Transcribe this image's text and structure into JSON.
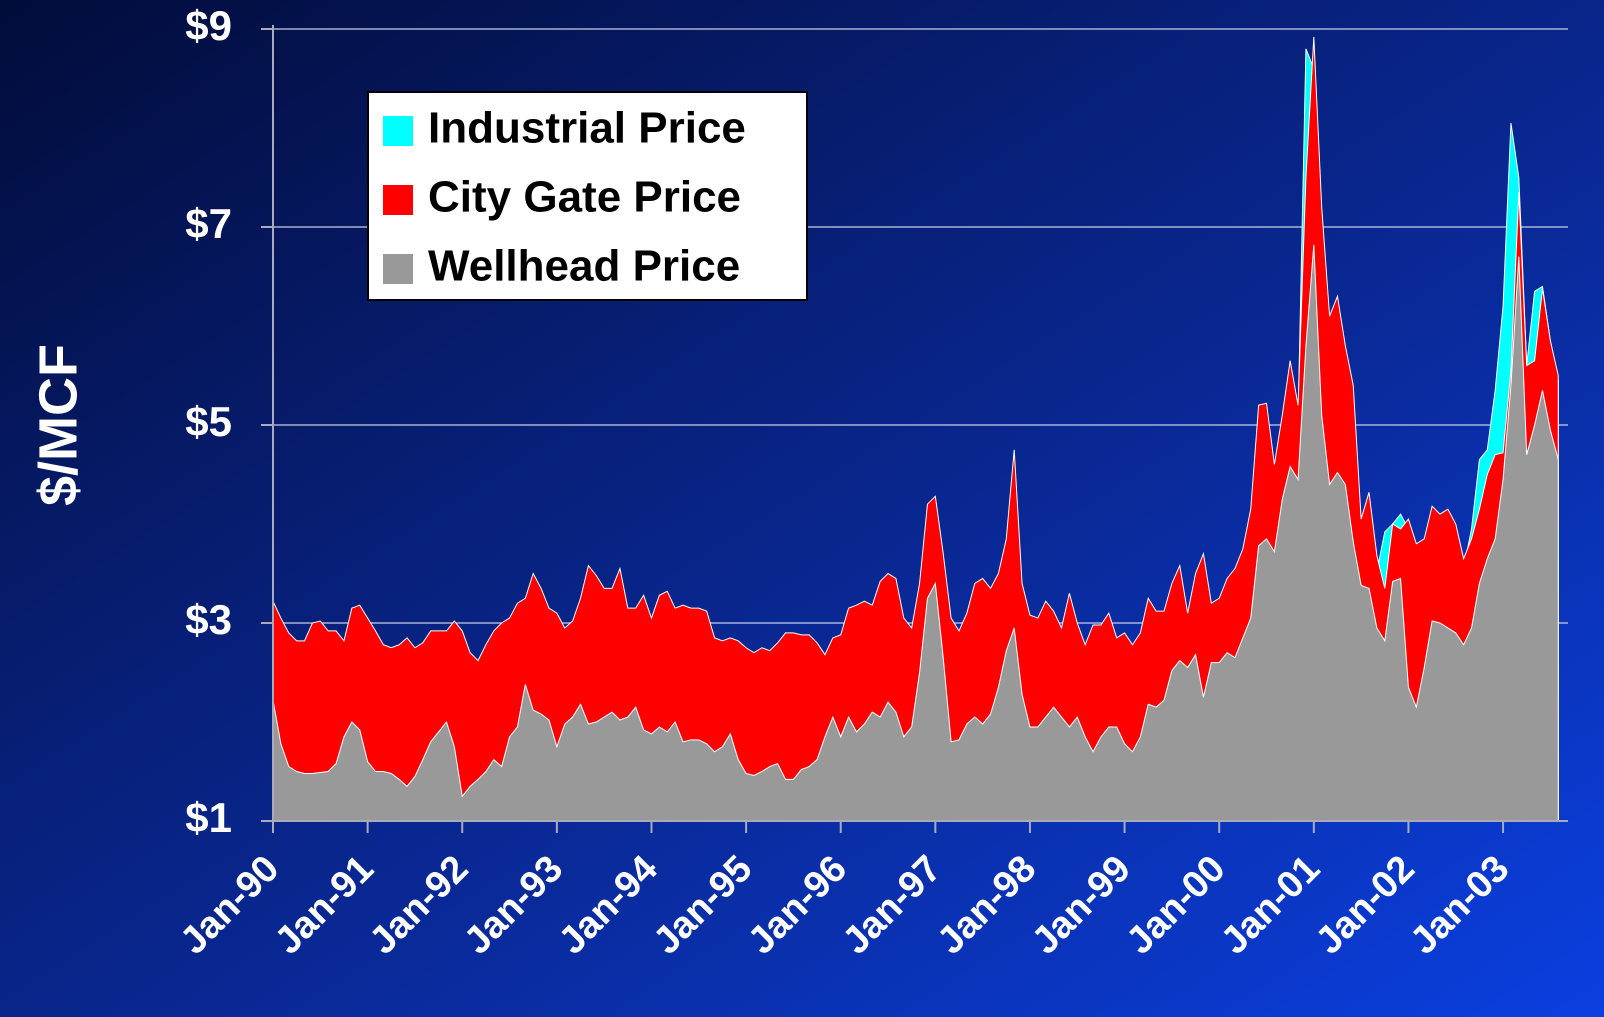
{
  "chart_data": {
    "type": "area",
    "ylabel": "$/MCF",
    "categories": [
      "Jan-90",
      null,
      null,
      null,
      null,
      null,
      null,
      null,
      null,
      null,
      null,
      null,
      "Jan-91",
      null,
      null,
      null,
      null,
      null,
      null,
      null,
      null,
      null,
      null,
      null,
      "Jan-92",
      null,
      null,
      null,
      null,
      null,
      null,
      null,
      null,
      null,
      null,
      null,
      "Jan-93",
      null,
      null,
      null,
      null,
      null,
      null,
      null,
      null,
      null,
      null,
      null,
      "Jan-94",
      null,
      null,
      null,
      null,
      null,
      null,
      null,
      null,
      null,
      null,
      null,
      "Jan-95",
      null,
      null,
      null,
      null,
      null,
      null,
      null,
      null,
      null,
      null,
      null,
      "Jan-96",
      null,
      null,
      null,
      null,
      null,
      null,
      null,
      null,
      null,
      null,
      null,
      "Jan-97",
      null,
      null,
      null,
      null,
      null,
      null,
      null,
      null,
      null,
      null,
      null,
      "Jan-98",
      null,
      null,
      null,
      null,
      null,
      null,
      null,
      null,
      null,
      null,
      null,
      "Jan-99",
      null,
      null,
      null,
      null,
      null,
      null,
      null,
      null,
      null,
      null,
      null,
      "Jan-00",
      null,
      null,
      null,
      null,
      null,
      null,
      null,
      null,
      null,
      null,
      null,
      "Jan-01",
      null,
      null,
      null,
      null,
      null,
      null,
      null,
      null,
      null,
      null,
      null,
      "Jan-02",
      null,
      null,
      null,
      null,
      null,
      null,
      null,
      null,
      null,
      null,
      null,
      "Jan-03",
      null,
      null,
      null,
      null,
      null,
      null,
      null
    ],
    "series": [
      {
        "name": "Industrial Price",
        "color": "#00ffff",
        "values": [
          3.05,
          2.9,
          2.75,
          2.68,
          2.65,
          2.8,
          2.85,
          2.78,
          2.75,
          2.68,
          2.98,
          3.02,
          2.9,
          2.78,
          2.62,
          2.6,
          2.62,
          2.7,
          2.6,
          2.65,
          2.78,
          2.78,
          2.78,
          2.88,
          2.78,
          2.55,
          2.48,
          2.62,
          2.78,
          2.85,
          2.9,
          3.05,
          3.1,
          3.35,
          3.2,
          3.0,
          2.95,
          2.8,
          2.88,
          3.1,
          3.42,
          3.32,
          3.2,
          3.2,
          3.4,
          3.0,
          3.0,
          3.12,
          2.9,
          3.12,
          3.18,
          3.0,
          3.02,
          3.0,
          3.0,
          2.98,
          2.7,
          2.68,
          2.7,
          2.68,
          2.6,
          2.55,
          2.6,
          2.58,
          2.65,
          2.75,
          2.75,
          2.72,
          2.72,
          2.65,
          2.52,
          2.7,
          2.72,
          3.0,
          3.02,
          3.08,
          3.02,
          3.28,
          3.35,
          3.3,
          2.9,
          2.8,
          3.25,
          4.05,
          4.12,
          3.55,
          2.9,
          2.78,
          2.95,
          3.25,
          3.3,
          3.2,
          3.35,
          3.7,
          4.55,
          3.25,
          2.92,
          2.9,
          3.08,
          2.98,
          2.8,
          3.15,
          2.85,
          2.62,
          2.82,
          2.82,
          2.95,
          2.7,
          2.75,
          2.62,
          2.75,
          3.1,
          2.98,
          2.98,
          3.25,
          3.42,
          2.95,
          3.35,
          3.55,
          3.05,
          3.1,
          3.3,
          3.4,
          3.6,
          4.0,
          5.05,
          5.08,
          4.45,
          4.95,
          5.5,
          5.05,
          8.8,
          8.6,
          7.0,
          5.95,
          6.15,
          5.65,
          5.25,
          3.9,
          4.18,
          3.52,
          3.92,
          4.0,
          4.1,
          3.95,
          3.7,
          3.75,
          4.05,
          3.98,
          4.02,
          3.88,
          3.55,
          3.95,
          4.65,
          4.75,
          5.35,
          6.2,
          8.05,
          7.5,
          5.6,
          6.35,
          6.4,
          5.85,
          5.45
        ]
      },
      {
        "name": "City Gate Price",
        "color": "#ff0000",
        "values": [
          3.22,
          3.05,
          2.9,
          2.82,
          2.82,
          3.0,
          3.02,
          2.92,
          2.92,
          2.82,
          3.15,
          3.18,
          3.05,
          2.92,
          2.78,
          2.75,
          2.78,
          2.85,
          2.75,
          2.8,
          2.92,
          2.92,
          2.92,
          3.02,
          2.92,
          2.7,
          2.62,
          2.78,
          2.92,
          3.0,
          3.05,
          3.2,
          3.25,
          3.5,
          3.35,
          3.15,
          3.1,
          2.95,
          3.02,
          3.25,
          3.58,
          3.48,
          3.35,
          3.35,
          3.55,
          3.15,
          3.15,
          3.28,
          3.05,
          3.28,
          3.32,
          3.15,
          3.18,
          3.15,
          3.15,
          3.12,
          2.85,
          2.82,
          2.85,
          2.82,
          2.75,
          2.7,
          2.75,
          2.72,
          2.8,
          2.9,
          2.9,
          2.88,
          2.88,
          2.8,
          2.68,
          2.85,
          2.88,
          3.15,
          3.18,
          3.22,
          3.18,
          3.42,
          3.5,
          3.45,
          3.05,
          2.95,
          3.4,
          4.2,
          4.28,
          3.7,
          3.05,
          2.92,
          3.1,
          3.4,
          3.45,
          3.35,
          3.5,
          3.85,
          4.75,
          3.4,
          3.08,
          3.05,
          3.22,
          3.12,
          2.95,
          3.3,
          3.0,
          2.78,
          2.98,
          2.98,
          3.1,
          2.85,
          2.9,
          2.78,
          2.9,
          3.25,
          3.12,
          3.12,
          3.4,
          3.58,
          3.1,
          3.5,
          3.7,
          3.2,
          3.25,
          3.45,
          3.55,
          3.75,
          4.15,
          5.2,
          5.22,
          4.6,
          5.1,
          5.65,
          5.2,
          7.5,
          8.92,
          7.2,
          6.1,
          6.3,
          5.8,
          5.4,
          4.05,
          4.32,
          3.68,
          3.35,
          4.0,
          3.95,
          4.05,
          3.8,
          3.85,
          4.18,
          4.1,
          4.15,
          4.0,
          3.65,
          3.85,
          4.15,
          4.5,
          4.7,
          4.72,
          5.55,
          7.35,
          5.6,
          5.65,
          6.38,
          5.85,
          5.5
        ]
      },
      {
        "name": "Wellhead Price",
        "color": "#999999",
        "values": [
          2.22,
          1.78,
          1.55,
          1.5,
          1.48,
          1.48,
          1.49,
          1.5,
          1.58,
          1.85,
          2.0,
          1.92,
          1.6,
          1.5,
          1.5,
          1.48,
          1.42,
          1.35,
          1.45,
          1.62,
          1.8,
          1.9,
          2.0,
          1.75,
          1.25,
          1.35,
          1.42,
          1.5,
          1.62,
          1.55,
          1.85,
          1.95,
          2.38,
          2.12,
          2.08,
          2.02,
          1.75,
          1.98,
          2.05,
          2.18,
          1.98,
          2.0,
          2.05,
          2.1,
          2.02,
          2.05,
          2.15,
          1.92,
          1.88,
          1.95,
          1.9,
          2.0,
          1.8,
          1.82,
          1.82,
          1.78,
          1.7,
          1.75,
          1.88,
          1.62,
          1.48,
          1.46,
          1.5,
          1.55,
          1.58,
          1.42,
          1.42,
          1.52,
          1.55,
          1.62,
          1.85,
          2.05,
          1.85,
          2.05,
          1.9,
          1.98,
          2.1,
          2.05,
          2.2,
          2.1,
          1.85,
          1.95,
          2.5,
          3.25,
          3.4,
          2.65,
          1.8,
          1.82,
          1.98,
          2.05,
          1.98,
          2.08,
          2.35,
          2.72,
          2.95,
          2.28,
          1.95,
          1.95,
          2.05,
          2.15,
          2.05,
          1.95,
          2.05,
          1.85,
          1.7,
          1.85,
          1.95,
          1.95,
          1.78,
          1.7,
          1.85,
          2.18,
          2.15,
          2.22,
          2.52,
          2.62,
          2.55,
          2.68,
          2.25,
          2.6,
          2.6,
          2.7,
          2.65,
          2.85,
          3.05,
          3.78,
          3.85,
          3.72,
          4.25,
          4.58,
          4.45,
          5.8,
          6.82,
          5.1,
          4.4,
          4.52,
          4.4,
          3.82,
          3.38,
          3.35,
          2.95,
          2.82,
          3.42,
          3.45,
          2.35,
          2.15,
          2.55,
          3.02,
          3.0,
          2.95,
          2.9,
          2.78,
          2.95,
          3.4,
          3.65,
          3.85,
          4.45,
          5.4,
          6.7,
          4.7,
          5.0,
          5.35,
          4.95,
          4.65
        ]
      }
    ],
    "ylim": [
      1,
      9
    ],
    "yticks": [
      {
        "value": 1,
        "label": "$1"
      },
      {
        "value": 3,
        "label": "$3"
      },
      {
        "value": 5,
        "label": "$5"
      },
      {
        "value": 7,
        "label": "$7"
      },
      {
        "value": 9,
        "label": "$9"
      }
    ],
    "grid": true,
    "legend": "upper left"
  }
}
